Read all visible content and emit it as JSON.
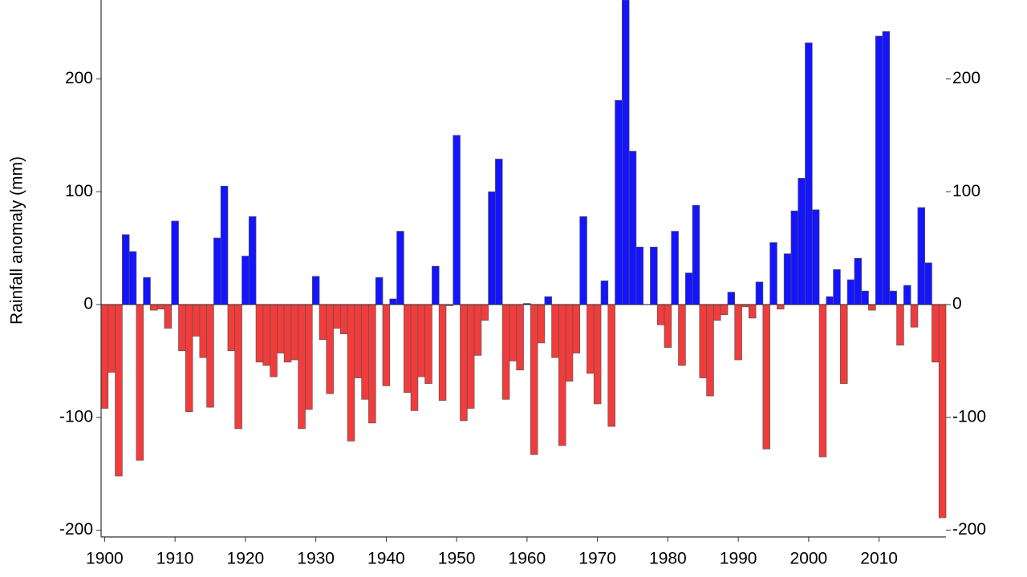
{
  "chart_data": {
    "type": "bar",
    "y_label": "Rainfall anomaly (mm)",
    "x": [
      1900,
      1901,
      1902,
      1903,
      1904,
      1905,
      1906,
      1907,
      1908,
      1909,
      1910,
      1911,
      1912,
      1913,
      1914,
      1915,
      1916,
      1917,
      1918,
      1919,
      1920,
      1921,
      1922,
      1923,
      1924,
      1925,
      1926,
      1927,
      1928,
      1929,
      1930,
      1931,
      1932,
      1933,
      1934,
      1935,
      1936,
      1937,
      1938,
      1939,
      1940,
      1941,
      1942,
      1943,
      1944,
      1945,
      1946,
      1947,
      1948,
      1949,
      1950,
      1951,
      1952,
      1953,
      1954,
      1955,
      1956,
      1957,
      1958,
      1959,
      1960,
      1961,
      1962,
      1963,
      1964,
      1965,
      1966,
      1967,
      1968,
      1969,
      1970,
      1971,
      1972,
      1973,
      1974,
      1975,
      1976,
      1977,
      1978,
      1979,
      1980,
      1981,
      1982,
      1983,
      1984,
      1985,
      1986,
      1987,
      1988,
      1989,
      1990,
      1991,
      1992,
      1993,
      1994,
      1995,
      1996,
      1997,
      1998,
      1999,
      2000,
      2001,
      2002,
      2003,
      2004,
      2005,
      2006,
      2007,
      2008,
      2009,
      2010,
      2011,
      2012,
      2013,
      2014,
      2015,
      2016,
      2017,
      2018,
      2019
    ],
    "values": [
      -92,
      -60,
      -152,
      62,
      47,
      -138,
      24,
      -5,
      -4,
      -21,
      74,
      -41,
      -95,
      -28,
      -47,
      -91,
      59,
      105,
      -41,
      -110,
      43,
      78,
      -51,
      -54,
      -64,
      -43,
      -51,
      -49,
      -110,
      -93,
      25,
      -31,
      -79,
      -21,
      -26,
      -121,
      -65,
      -84,
      -105,
      24,
      -72,
      5,
      65,
      -78,
      -94,
      -64,
      -70,
      34,
      -85,
      -1,
      150,
      -103,
      -92,
      -45,
      -14,
      100,
      129,
      -84,
      -50,
      -58,
      1,
      -133,
      -34,
      7,
      -47,
      -125,
      -68,
      -43,
      78,
      -61,
      -88,
      21,
      -108,
      181,
      270,
      136,
      51,
      0,
      51,
      -18,
      -38,
      65,
      -54,
      28,
      88,
      -65,
      -81,
      -14,
      -9,
      11,
      -49,
      -2,
      -12,
      20,
      -128,
      55,
      -4,
      45,
      83,
      112,
      232,
      84,
      -135,
      7,
      31,
      -70,
      22,
      41,
      12,
      -5,
      238,
      242,
      12,
      -36,
      17,
      -20,
      86,
      37,
      -51,
      -189
    ],
    "positive_color": "#1414ff",
    "negative_color": "#f23c3c",
    "xlim": [
      1899.5,
      2019.5
    ],
    "xticks": [
      1900,
      1910,
      1920,
      1930,
      1940,
      1950,
      1960,
      1970,
      1980,
      1990,
      2000,
      2010
    ],
    "ylim": [
      -206,
      270
    ],
    "yticks": [
      -200,
      -100,
      0,
      100,
      200
    ]
  }
}
